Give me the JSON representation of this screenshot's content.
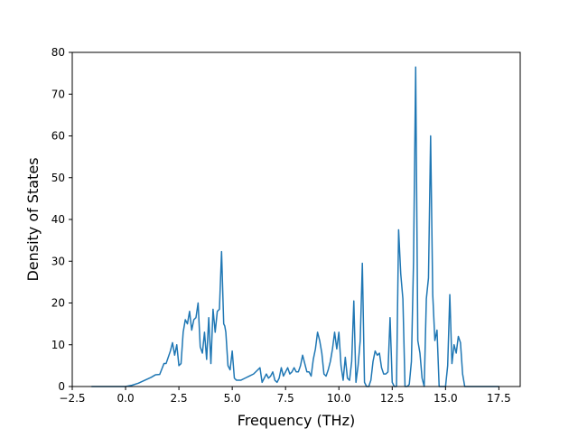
{
  "chart_data": {
    "type": "line",
    "title": "",
    "xlabel": "Frequency (THz)",
    "ylabel": "Density of States",
    "xlim": [
      -2.5,
      18.5
    ],
    "ylim": [
      0,
      80
    ],
    "xticks": [
      -2.5,
      0.0,
      2.5,
      5.0,
      7.5,
      10.0,
      12.5,
      15.0,
      17.5
    ],
    "xtick_labels": [
      "−2.5",
      "0.0",
      "2.5",
      "5.0",
      "7.5",
      "10.0",
      "12.5",
      "15.0",
      "17.5"
    ],
    "yticks": [
      0,
      10,
      20,
      30,
      40,
      50,
      60,
      70,
      80
    ],
    "ytick_labels": [
      "0",
      "10",
      "20",
      "30",
      "40",
      "50",
      "60",
      "70",
      "80"
    ],
    "grid": false,
    "legend": "none",
    "series": [
      {
        "color": "#1f77b4",
        "x": [
          -1.6,
          -0.5,
          0.0,
          0.3,
          0.6,
          0.9,
          1.2,
          1.4,
          1.6,
          1.8,
          1.9,
          2.0,
          2.1,
          2.2,
          2.3,
          2.4,
          2.5,
          2.6,
          2.7,
          2.8,
          2.9,
          3.0,
          3.1,
          3.2,
          3.3,
          3.4,
          3.5,
          3.6,
          3.7,
          3.8,
          3.9,
          4.0,
          4.1,
          4.2,
          4.3,
          4.4,
          4.5,
          4.6,
          4.65,
          4.7,
          4.8,
          4.9,
          5.0,
          5.1,
          5.2,
          5.4,
          5.6,
          5.8,
          6.0,
          6.2,
          6.3,
          6.4,
          6.5,
          6.6,
          6.7,
          6.8,
          6.9,
          7.0,
          7.1,
          7.2,
          7.3,
          7.4,
          7.5,
          7.6,
          7.7,
          7.8,
          7.9,
          8.0,
          8.1,
          8.2,
          8.3,
          8.4,
          8.5,
          8.6,
          8.7,
          8.8,
          8.9,
          9.0,
          9.1,
          9.2,
          9.3,
          9.4,
          9.5,
          9.6,
          9.7,
          9.8,
          9.9,
          10.0,
          10.1,
          10.2,
          10.3,
          10.4,
          10.5,
          10.6,
          10.7,
          10.8,
          10.9,
          11.0,
          11.1,
          11.2,
          11.3,
          11.4,
          11.5,
          11.6,
          11.7,
          11.8,
          11.9,
          12.0,
          12.1,
          12.2,
          12.3,
          12.4,
          12.5,
          12.6,
          12.7,
          12.8,
          12.9,
          13.0,
          13.1,
          13.2,
          13.3,
          13.4,
          13.5,
          13.6,
          13.7,
          13.8,
          13.9,
          14.0,
          14.1,
          14.2,
          14.3,
          14.4,
          14.5,
          14.6,
          14.7,
          14.8,
          14.9,
          15.0,
          15.1,
          15.2,
          15.3,
          15.4,
          15.5,
          15.6,
          15.7,
          15.8,
          15.9,
          16.0,
          16.2,
          16.5,
          17.0,
          17.5
        ],
        "y": [
          0,
          0,
          0,
          0.3,
          0.8,
          1.5,
          2.2,
          2.8,
          2.9,
          5.5,
          5.5,
          7.0,
          8.5,
          10.5,
          7.5,
          10.0,
          5.0,
          5.5,
          13.0,
          16.0,
          15.0,
          18.0,
          13.5,
          16.0,
          16.5,
          20.0,
          9.5,
          8.0,
          13.0,
          6.5,
          16.5,
          5.5,
          18.5,
          13.0,
          18.0,
          18.5,
          32.3,
          15.0,
          14.5,
          13.0,
          5.0,
          4.0,
          8.5,
          2.0,
          1.5,
          1.5,
          2.0,
          2.5,
          3.0,
          4.0,
          4.5,
          1.0,
          2.0,
          3.0,
          2.0,
          2.5,
          3.5,
          1.5,
          1.0,
          2.0,
          4.5,
          2.5,
          3.5,
          4.5,
          3.0,
          3.5,
          4.5,
          3.5,
          3.5,
          5.0,
          7.5,
          5.5,
          3.5,
          3.5,
          2.5,
          6.5,
          9.0,
          13.0,
          11.0,
          8.0,
          3.0,
          2.5,
          4.0,
          6.0,
          9.0,
          13.0,
          9.0,
          13.0,
          5.0,
          1.5,
          7.0,
          2.0,
          1.5,
          6.0,
          20.5,
          1.0,
          5.0,
          11.0,
          29.5,
          1.0,
          0.0,
          0.0,
          1.5,
          6.0,
          8.5,
          7.5,
          8.0,
          4.5,
          3.0,
          3.0,
          3.5,
          16.5,
          1.0,
          0.0,
          0.0,
          37.5,
          27.0,
          21.0,
          0.0,
          0.0,
          0.5,
          6.0,
          30.0,
          76.5,
          11.0,
          8.0,
          2.0,
          0.0,
          21.0,
          26.0,
          60.0,
          22.0,
          11.0,
          13.5,
          0.0,
          0.0,
          0.0,
          0.0,
          5.0,
          22.0,
          5.5,
          10.0,
          8.0,
          12.0,
          10.5,
          3.0,
          0.0,
          0.0,
          0.0,
          0.0,
          0.0,
          0.0
        ]
      }
    ]
  }
}
